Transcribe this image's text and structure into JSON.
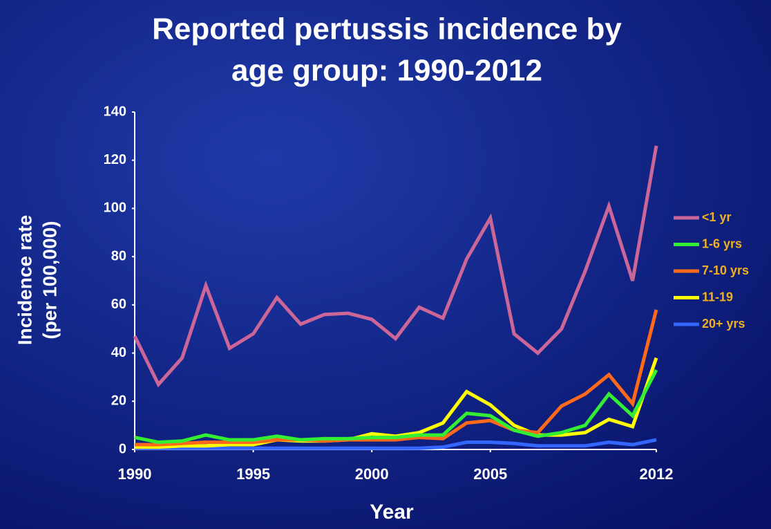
{
  "chart_data": {
    "type": "line",
    "title": [
      "Reported pertussis incidence by",
      "age group: 1990-2012"
    ],
    "ylabel": [
      "Incidence rate",
      "(per 100,000)"
    ],
    "xlabel": "Year",
    "x": [
      1990,
      1991,
      1992,
      1993,
      1994,
      1995,
      1996,
      1997,
      1998,
      1999,
      2000,
      2001,
      2002,
      2003,
      2004,
      2005,
      2006,
      2007,
      2008,
      2009,
      2010,
      2011,
      2012
    ],
    "xlim": [
      1990,
      2012
    ],
    "xticks": [
      1990,
      1995,
      2000,
      2005,
      2012
    ],
    "ylim": [
      0,
      140
    ],
    "yticks": [
      0,
      20,
      40,
      60,
      80,
      100,
      120,
      140
    ],
    "legend": "right",
    "series": [
      {
        "name": "<1 yr",
        "color": "#cc6699",
        "values": [
          47,
          27,
          38,
          68,
          42,
          48,
          63,
          52,
          56,
          56.5,
          54,
          46,
          59,
          54.5,
          79,
          96,
          48,
          40,
          50,
          74,
          101,
          70,
          126
        ]
      },
      {
        "name": "1-6 yrs",
        "color": "#33ee33",
        "values": [
          5,
          3,
          3.5,
          6,
          4,
          4,
          5.5,
          4,
          4.5,
          4.5,
          5,
          5,
          6,
          6,
          15,
          14,
          8,
          5.5,
          7,
          10,
          23,
          14,
          33
        ]
      },
      {
        "name": "7-10 yrs",
        "color": "#ff6a1a",
        "values": [
          2,
          2,
          2.5,
          3,
          3,
          3,
          4,
          4,
          3.5,
          4,
          4,
          4,
          5,
          4.5,
          11,
          12,
          8,
          7,
          18,
          23,
          31,
          19,
          58
        ]
      },
      {
        "name": "11-19",
        "color": "#ffff00",
        "values": [
          1,
          1,
          1.5,
          1.5,
          2,
          2,
          4,
          3.5,
          3.5,
          4,
          6.5,
          5.5,
          7,
          11,
          24,
          18.5,
          10,
          6,
          6,
          7,
          12.5,
          9.5,
          38
        ]
      },
      {
        "name": "20+ yrs",
        "color": "#3366ff",
        "values": [
          0.5,
          0.5,
          0.5,
          0.5,
          0.5,
          0.5,
          0.5,
          0.5,
          0.5,
          0.5,
          0.5,
          0.5,
          0.5,
          1,
          3,
          3,
          2.5,
          1.5,
          1.5,
          1.5,
          3,
          2,
          4
        ]
      }
    ]
  }
}
